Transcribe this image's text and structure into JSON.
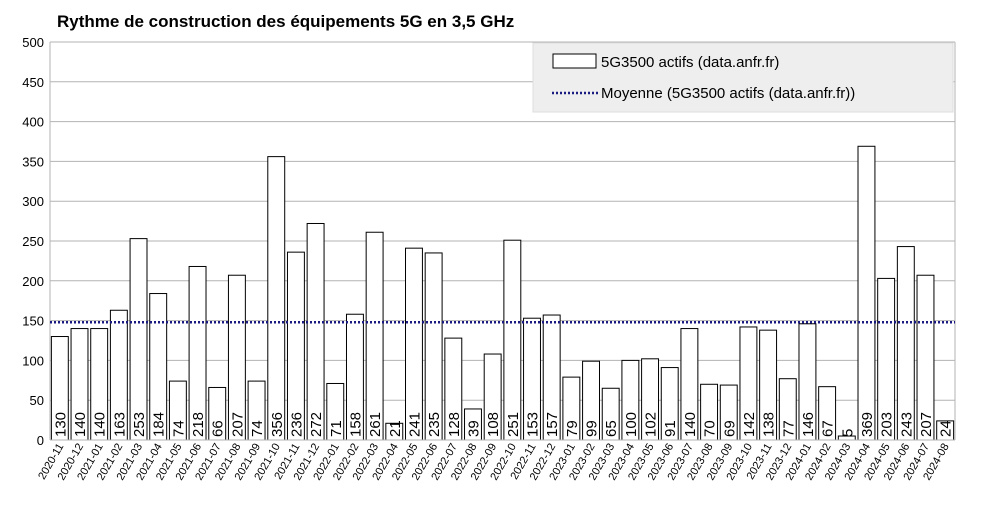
{
  "chart_data": {
    "type": "bar",
    "title": "Rythme de construction des équipements 5G en 3,5 GHz",
    "xlabel": "",
    "ylabel": "",
    "ylim": [
      0,
      500
    ],
    "yticks": [
      0,
      50,
      100,
      150,
      200,
      250,
      300,
      350,
      400,
      450,
      500
    ],
    "grid": true,
    "legend_position": "top-right",
    "categories": [
      "2020-11",
      "2020-12",
      "2021-01",
      "2021-02",
      "2021-03",
      "2021-04",
      "2021-05",
      "2021-06",
      "2021-07",
      "2021-08",
      "2021-09",
      "2021-10",
      "2021-11",
      "2021-12",
      "2022-01",
      "2022-02",
      "2022-03",
      "2022-04",
      "2022-05",
      "2022-06",
      "2022-07",
      "2022-08",
      "2022-09",
      "2022-10",
      "2022-11",
      "2022-12",
      "2023-01",
      "2023-02",
      "2023-03",
      "2023-04",
      "2023-05",
      "2023-06",
      "2023-07",
      "2023-08",
      "2023-09",
      "2023-10",
      "2023-11",
      "2023-12",
      "2024-01",
      "2024-02",
      "2024-03",
      "2024-04",
      "2024-05",
      "2024-06",
      "2024-07",
      "2024-08"
    ],
    "series": [
      {
        "name": "5G3500 actifs (data.anfr.fr)",
        "kind": "bar",
        "values": [
          130,
          140,
          140,
          163,
          253,
          184,
          74,
          218,
          66,
          207,
          74,
          356,
          236,
          272,
          71,
          158,
          261,
          21,
          241,
          235,
          128,
          39,
          108,
          251,
          153,
          157,
          79,
          99,
          65,
          100,
          102,
          91,
          140,
          70,
          69,
          142,
          138,
          77,
          146,
          67,
          5,
          369,
          203,
          243,
          207,
          24
        ]
      },
      {
        "name": "Moyenne (5G3500 actifs (data.anfr.fr))",
        "kind": "line-dotted",
        "value": 148
      }
    ],
    "colors": {
      "bar_fill": "#ffffff",
      "bar_stroke": "#000000",
      "mean_line": "#1a1a80",
      "grid": "#b3b3b3",
      "legend_bg": "#eeeeee"
    }
  }
}
